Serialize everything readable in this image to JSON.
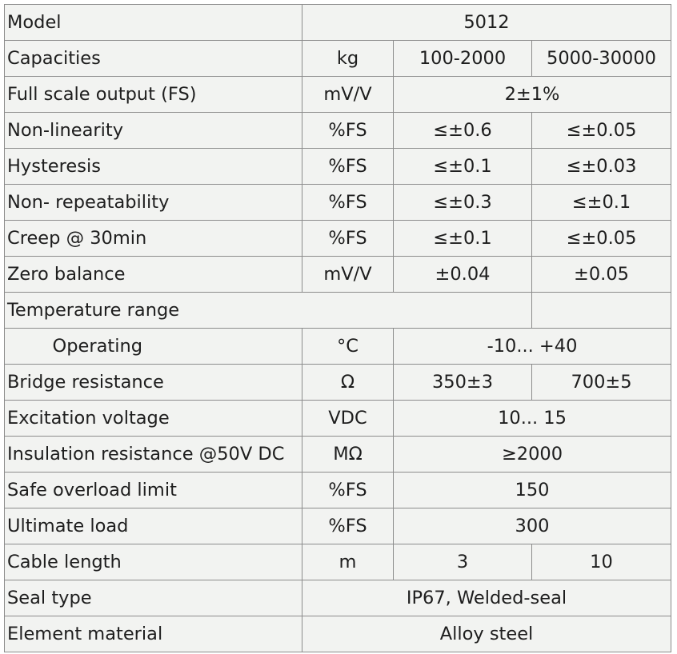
{
  "model": {
    "label": "Model",
    "value": "5012"
  },
  "capacities": {
    "label": "Capacities",
    "unit": "kg",
    "col1": "100-2000",
    "col2": "5000-30000"
  },
  "full_scale_output": {
    "label": "Full scale output (FS)",
    "unit": "mV/V",
    "value": "2±1%"
  },
  "non_linearity": {
    "label": "Non-linearity",
    "unit": "%FS",
    "col1": "≤±0.6",
    "col2": "≤±0.05"
  },
  "hysteresis": {
    "label": "Hysteresis",
    "unit": "%FS",
    "col1": "≤±0.1",
    "col2": "≤±0.03"
  },
  "non_repeatability": {
    "label": "Non- repeatability",
    "unit": "%FS",
    "col1": "≤±0.3",
    "col2": "≤±0.1"
  },
  "creep": {
    "label": "Creep @ 30min",
    "unit": "%FS",
    "col1": "≤±0.1",
    "col2": "≤±0.05"
  },
  "zero_balance": {
    "label": "Zero balance",
    "unit": "mV/V",
    "col1": "±0.04",
    "col2": "±0.05"
  },
  "temperature_range": {
    "label": "Temperature range"
  },
  "operating": {
    "label": "Operating",
    "unit": "°C",
    "value": "-10... +40"
  },
  "bridge_resistance": {
    "label": "Bridge resistance",
    "unit": "Ω",
    "col1": "350±3",
    "col2": "700±5"
  },
  "excitation_voltage": {
    "label": "Excitation voltage",
    "unit": "VDC",
    "value": "10... 15"
  },
  "insulation_resistance": {
    "label": "Insulation resistance @50V DC",
    "unit": "MΩ",
    "value": "≥2000"
  },
  "safe_overload": {
    "label": "Safe overload limit",
    "unit": "%FS",
    "value": "150"
  },
  "ultimate_load": {
    "label": "Ultimate load",
    "unit": "%FS",
    "value": "300"
  },
  "cable_length": {
    "label": "Cable length",
    "unit": "m",
    "col1": "3",
    "col2": "10"
  },
  "seal_type": {
    "label": "Seal type",
    "value": "IP67, Welded-seal"
  },
  "element_material": {
    "label": "Element material",
    "value": "Alloy steel"
  }
}
